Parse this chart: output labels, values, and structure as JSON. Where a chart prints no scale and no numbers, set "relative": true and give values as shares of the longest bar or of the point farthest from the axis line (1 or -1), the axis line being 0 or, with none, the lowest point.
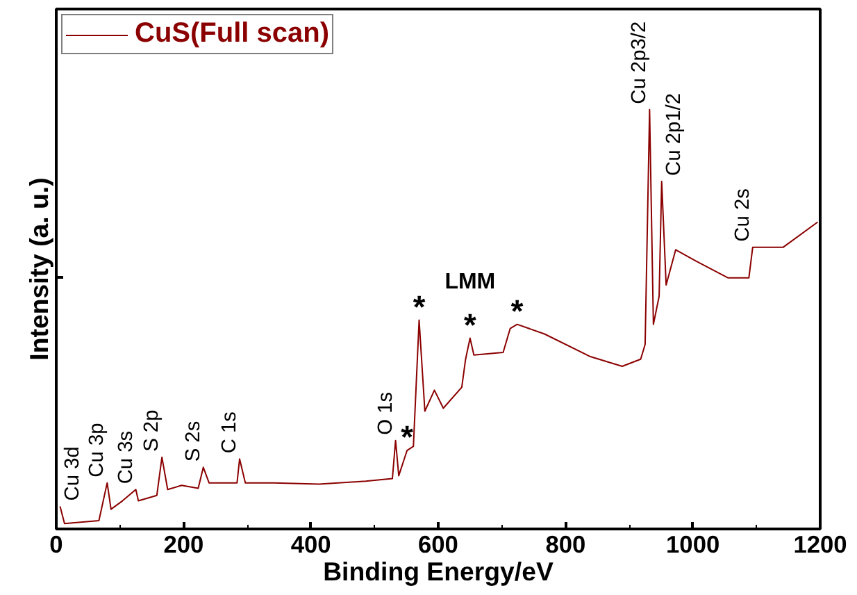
{
  "chart_data": {
    "type": "line",
    "relative": true,
    "xlabel": "Binding Energy/eV",
    "ylabel": "Intensity (a. u.)",
    "x": [
      6,
      13,
      67,
      80,
      86,
      104,
      125,
      129,
      158,
      166,
      175,
      197,
      223,
      231,
      240,
      284,
      288,
      297,
      342,
      413,
      486,
      528,
      533,
      538,
      551,
      561,
      570,
      579,
      594,
      608,
      637,
      643,
      650,
      656,
      702,
      713,
      724,
      767,
      839,
      889,
      918,
      925,
      932,
      938,
      947,
      951,
      958,
      973,
      1005,
      1055,
      1088,
      1094,
      1142,
      1196
    ],
    "series": [
      {
        "name": "CuS(Full scan)",
        "color": "#8b0000",
        "values": [
          0.054,
          0.013,
          0.02,
          0.11,
          0.047,
          0.067,
          0.094,
          0.067,
          0.08,
          0.171,
          0.094,
          0.104,
          0.097,
          0.147,
          0.11,
          0.11,
          0.167,
          0.11,
          0.11,
          0.107,
          0.114,
          0.12,
          0.211,
          0.127,
          0.187,
          0.197,
          0.498,
          0.281,
          0.331,
          0.288,
          0.338,
          0.405,
          0.455,
          0.415,
          0.421,
          0.478,
          0.488,
          0.465,
          0.411,
          0.388,
          0.405,
          0.44,
          1.0,
          0.488,
          0.555,
          0.829,
          0.582,
          0.666,
          0.639,
          0.599,
          0.599,
          0.672,
          0.672,
          0.732
        ]
      }
    ],
    "xlim": [
      0,
      1200
    ],
    "xticks": [
      0,
      200,
      400,
      600,
      800,
      1000,
      1200
    ],
    "legend": "top left",
    "grid": false,
    "marker": "none",
    "line_style": "solid",
    "annotations": [
      {
        "text": "Cu 3d",
        "x": 6,
        "y": 0.054
      },
      {
        "text": "Cu 3p",
        "x": 80,
        "y": 0.11
      },
      {
        "text": "Cu 3s",
        "x": 125,
        "y": 0.094
      },
      {
        "text": "S 2p",
        "x": 166,
        "y": 0.171
      },
      {
        "text": "S 2s",
        "x": 231,
        "y": 0.147
      },
      {
        "text": "C 1s",
        "x": 288,
        "y": 0.167
      },
      {
        "text": "O 1s",
        "x": 533,
        "y": 0.211
      },
      {
        "text": "*",
        "x": 551,
        "y": 0.187
      },
      {
        "text": "*",
        "x": 570,
        "y": 0.498
      },
      {
        "text": "*",
        "x": 650,
        "y": 0.455
      },
      {
        "text": "*",
        "x": 724,
        "y": 0.488
      },
      "LMM",
      {
        "text": "Cu 2p3/2",
        "x": 932,
        "y": 1.0
      },
      {
        "text": "Cu 2p1/2",
        "x": 951,
        "y": 0.829
      },
      {
        "text": "Cu 2s",
        "x": 1094,
        "y": 0.672
      }
    ]
  }
}
